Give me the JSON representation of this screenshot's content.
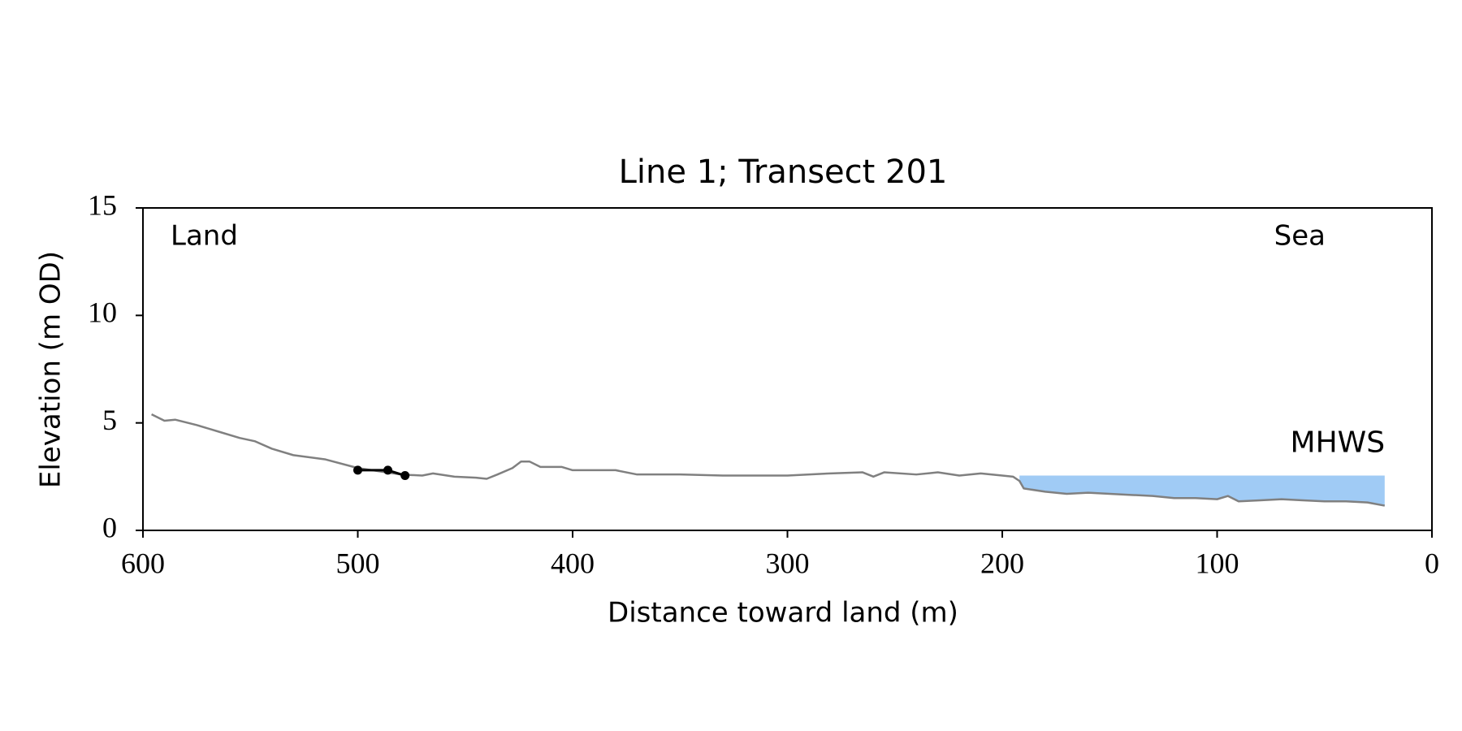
{
  "chart_data": {
    "type": "line",
    "title": "Line 1; Transect 201",
    "xlabel": "Distance toward land (m)",
    "ylabel": "Elevation (m OD)",
    "xlim": [
      600,
      0
    ],
    "ylim": [
      0,
      15
    ],
    "xticks": [
      600,
      500,
      400,
      300,
      200,
      100,
      0
    ],
    "yticks": [
      0,
      5,
      10,
      15
    ],
    "grid": false,
    "series": [
      {
        "color": "#808080",
        "x": [
          596,
          590,
          585,
          575,
          565,
          555,
          548,
          540,
          530,
          515,
          500,
          490,
          480,
          470,
          465,
          455,
          445,
          440,
          435,
          428,
          424,
          420,
          415,
          405,
          400,
          380,
          370,
          350,
          330,
          300,
          280,
          265,
          260,
          255,
          240,
          230,
          220,
          210,
          200,
          195,
          192,
          190,
          180,
          170,
          160,
          150,
          140,
          130,
          120,
          110,
          100,
          95,
          90,
          80,
          70,
          60,
          50,
          40,
          30,
          22
        ],
        "values": [
          5.4,
          5.1,
          5.15,
          4.9,
          4.6,
          4.3,
          4.15,
          3.8,
          3.5,
          3.3,
          2.9,
          2.75,
          2.6,
          2.55,
          2.65,
          2.5,
          2.45,
          2.4,
          2.6,
          2.9,
          3.2,
          3.2,
          2.95,
          2.95,
          2.8,
          2.8,
          2.6,
          2.6,
          2.55,
          2.55,
          2.65,
          2.7,
          2.5,
          2.7,
          2.6,
          2.7,
          2.55,
          2.65,
          2.55,
          2.5,
          2.3,
          1.95,
          1.8,
          1.7,
          1.75,
          1.7,
          1.65,
          1.6,
          1.5,
          1.5,
          1.45,
          1.6,
          1.35,
          1.4,
          1.45,
          1.4,
          1.35,
          1.35,
          1.3,
          1.15
        ]
      },
      {
        "color": "#000000",
        "marker": true,
        "x": [
          500,
          486,
          478
        ],
        "values": [
          2.8,
          2.8,
          2.55
        ]
      }
    ],
    "fill": {
      "label": "MHWS",
      "color": "#a0cbf5",
      "label_color": "#6a9acb",
      "level": 2.55,
      "x": [
        192,
        22
      ]
    },
    "annotations": [
      "Land",
      "Sea"
    ]
  }
}
